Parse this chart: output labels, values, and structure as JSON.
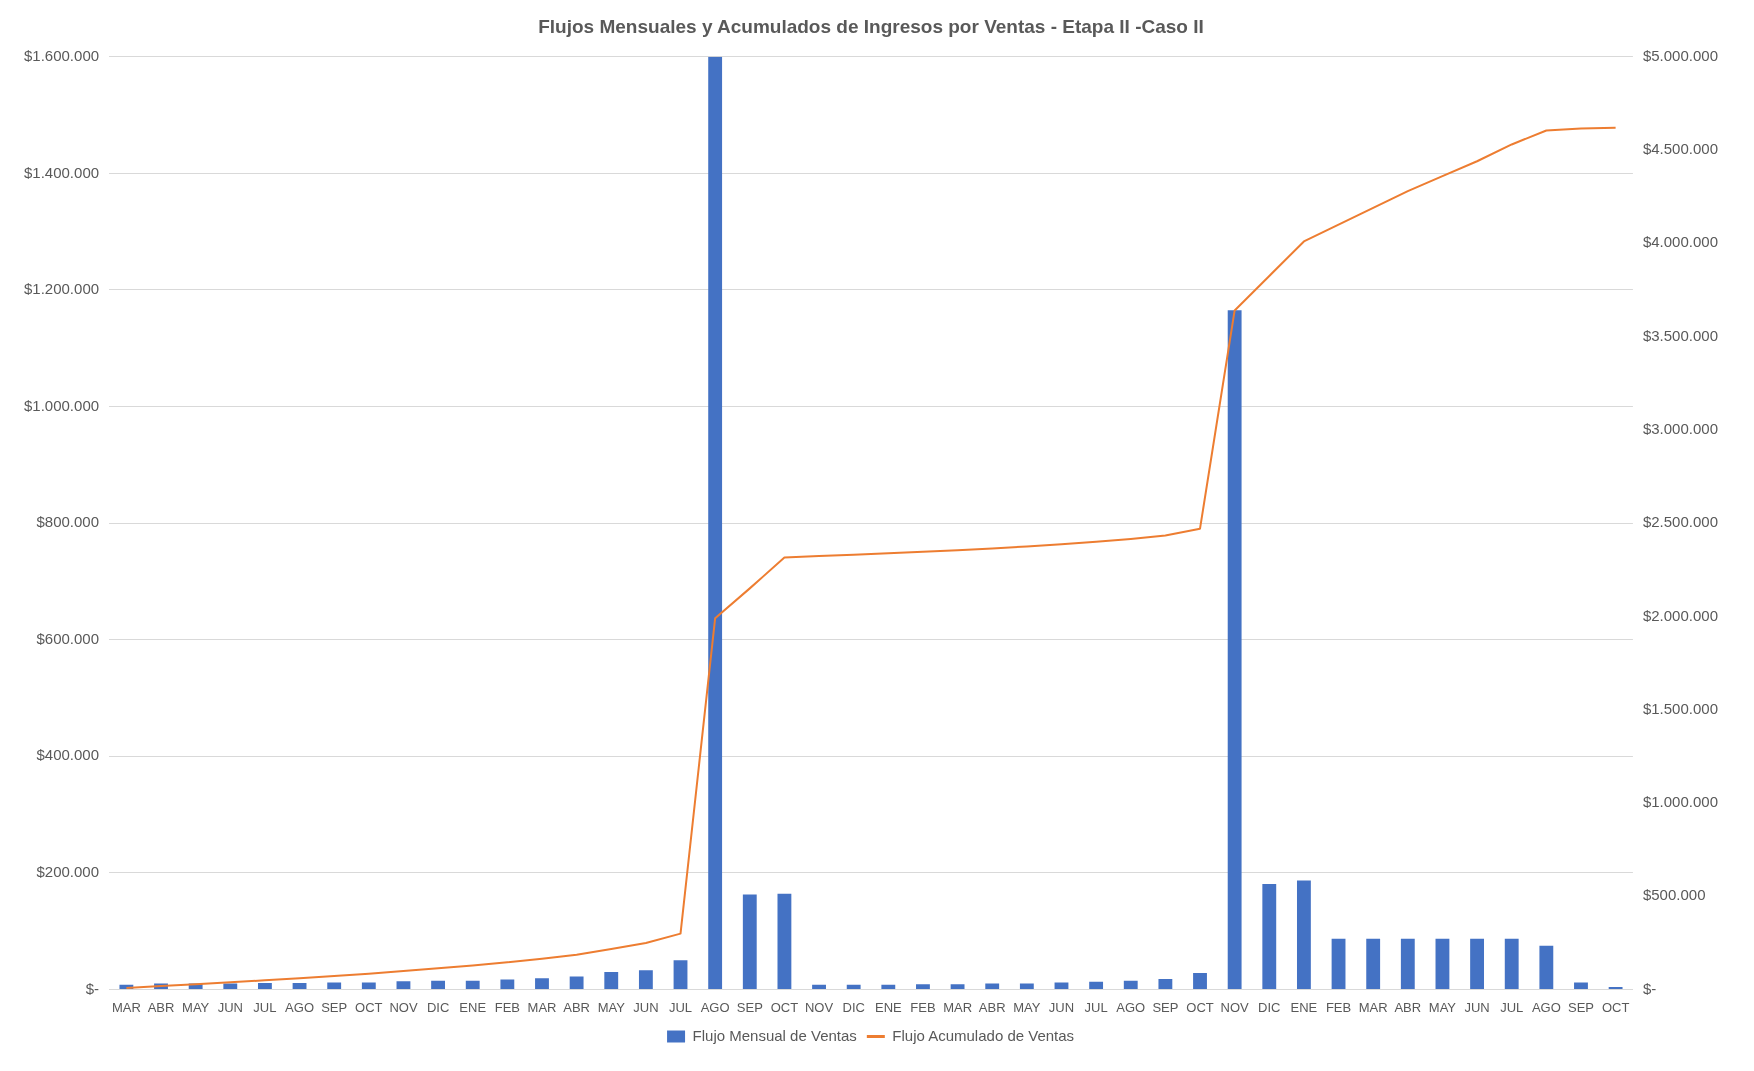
{
  "chart_data": {
    "type": "bar",
    "title": "Flujos Mensuales y Acumulados de Ingresos por Ventas - Etapa II -Caso II",
    "categories": [
      "MAR",
      "ABR",
      "MAY",
      "JUN",
      "JUL",
      "AGO",
      "SEP",
      "OCT",
      "NOV",
      "DIC",
      "ENE",
      "FEB",
      "MAR",
      "ABR",
      "MAY",
      "JUN",
      "JUL",
      "AGO",
      "SEP",
      "OCT",
      "NOV",
      "DIC",
      "ENE",
      "FEB",
      "MAR",
      "ABR",
      "MAY",
      "JUN",
      "JUL",
      "AGO",
      "SEP",
      "OCT",
      "NOV",
      "DIC",
      "ENE",
      "FEB",
      "MAR",
      "ABR",
      "MAY",
      "JUN",
      "JUL",
      "AGO",
      "SEP",
      "OCT"
    ],
    "series": [
      {
        "name": "Flujo Mensual de Ventas",
        "color": "#4472c4",
        "values": [
          8000,
          10000,
          10000,
          10000,
          11000,
          11000,
          12000,
          12000,
          14000,
          15000,
          15000,
          17000,
          19000,
          22000,
          30000,
          33000,
          50000,
          1600000,
          163000,
          164000,
          8000,
          8000,
          8000,
          9000,
          9000,
          10000,
          10000,
          12000,
          13000,
          15000,
          18000,
          28000,
          1165000,
          181000,
          187000,
          87000,
          87000,
          87000,
          87000,
          87000,
          87000,
          75000,
          12000,
          4000
        ]
      },
      {
        "name": "Flujo Acumulado de Ventas",
        "type": "line",
        "axis": "y2",
        "color": "#ed7d31",
        "values": [
          8000,
          18000,
          28000,
          38000,
          49000,
          60000,
          72000,
          84000,
          98000,
          113000,
          128000,
          145000,
          164000,
          186000,
          216000,
          249000,
          299000,
          1990000,
          2150000,
          2315000,
          2323000,
          2330000,
          2338000,
          2346000,
          2355000,
          2364000,
          2375000,
          2387000,
          2400000,
          2415000,
          2433000,
          2470000,
          3640000,
          3825000,
          4010000,
          4100000,
          4190000,
          4280000,
          4360000,
          4440000,
          4530000,
          4605000,
          4615000,
          4620000
        ]
      }
    ],
    "ylim": [
      0,
      1600000
    ],
    "yticks": [
      {
        "value": 0,
        "label": "$-"
      },
      {
        "value": 200000,
        "label": "$200.000"
      },
      {
        "value": 400000,
        "label": "$400.000"
      },
      {
        "value": 600000,
        "label": "$600.000"
      },
      {
        "value": 800000,
        "label": "$800.000"
      },
      {
        "value": 1000000,
        "label": "$1.000.000"
      },
      {
        "value": 1200000,
        "label": "$1.200.000"
      },
      {
        "value": 1400000,
        "label": "$1.400.000"
      },
      {
        "value": 1600000,
        "label": "$1.600.000"
      }
    ],
    "y2lim": [
      0,
      5000000
    ],
    "y2ticks": [
      {
        "value": 0,
        "label": "$-"
      },
      {
        "value": 500000,
        "label": "$500.000"
      },
      {
        "value": 1000000,
        "label": "$1.000.000"
      },
      {
        "value": 1500000,
        "label": "$1.500.000"
      },
      {
        "value": 2000000,
        "label": "$2.000.000"
      },
      {
        "value": 2500000,
        "label": "$2.500.000"
      },
      {
        "value": 3000000,
        "label": "$3.000.000"
      },
      {
        "value": 3500000,
        "label": "$3.500.000"
      },
      {
        "value": 4000000,
        "label": "$4.000.000"
      },
      {
        "value": 4500000,
        "label": "$4.500.000"
      },
      {
        "value": 5000000,
        "label": "$5.000.000"
      }
    ],
    "grid": "y",
    "legend": "bottom",
    "marker": "none",
    "line_style": "solid"
  }
}
